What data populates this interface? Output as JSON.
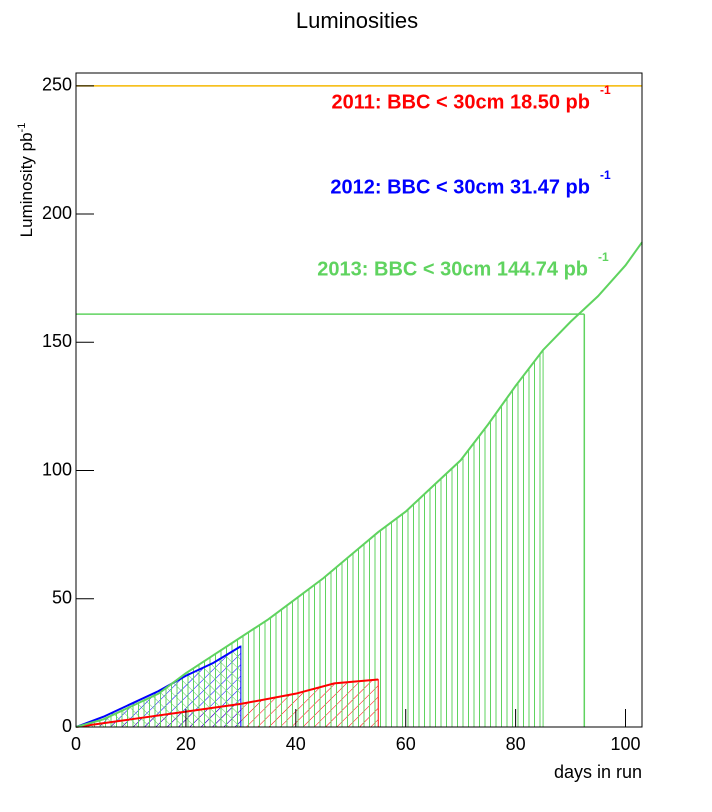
{
  "chart_data": {
    "type": "line",
    "title": "Luminosities",
    "xlabel": "days in run",
    "ylabel": "Luminosity pb",
    "ylabel_sup": "-1",
    "xlim": [
      0,
      103
    ],
    "ylim": [
      0,
      255
    ],
    "xticks": [
      0,
      20,
      40,
      60,
      80,
      100
    ],
    "yticks": [
      0,
      50,
      100,
      150,
      200,
      250
    ],
    "series": [
      {
        "name": "2011",
        "color": "#ff0000",
        "hatch": "diagonal",
        "x": [
          0,
          10,
          20,
          30,
          40,
          47,
          55
        ],
        "values": [
          0,
          3,
          6,
          9,
          13,
          17,
          18.5
        ]
      },
      {
        "name": "2012",
        "color": "#0000ff",
        "hatch": "cross",
        "x": [
          0,
          5,
          10,
          15,
          20,
          25,
          30
        ],
        "values": [
          0,
          4,
          9,
          14,
          20,
          25,
          31.47
        ]
      },
      {
        "name": "2013",
        "color": "#5fd35f",
        "hatch": "vertical",
        "fill_to": 85,
        "x": [
          0,
          5,
          10,
          15,
          20,
          25,
          30,
          35,
          40,
          45,
          50,
          55,
          60,
          65,
          70,
          75,
          80,
          85,
          90,
          95,
          100,
          103
        ],
        "values": [
          0,
          3,
          8,
          13,
          21,
          28,
          35,
          42,
          50,
          58,
          67,
          76,
          84,
          94,
          104,
          118,
          133,
          147,
          158,
          168,
          180,
          189
        ]
      }
    ],
    "reference_lines": [
      {
        "y": 250,
        "color": "#f5b800"
      },
      {
        "y": 161,
        "x": 92.5,
        "color": "#5fd35f"
      }
    ],
    "annotations": [
      {
        "text": "2011: BBC < 30cm 18.50 pb",
        "sup": "-1",
        "color": "#ff0000"
      },
      {
        "text": "2012: BBC < 30cm 31.47 pb",
        "sup": "-1",
        "color": "#0000ff"
      },
      {
        "text": "2013: BBC < 30cm 144.74 pb",
        "sup": "-1",
        "color": "#5fd35f"
      }
    ]
  }
}
